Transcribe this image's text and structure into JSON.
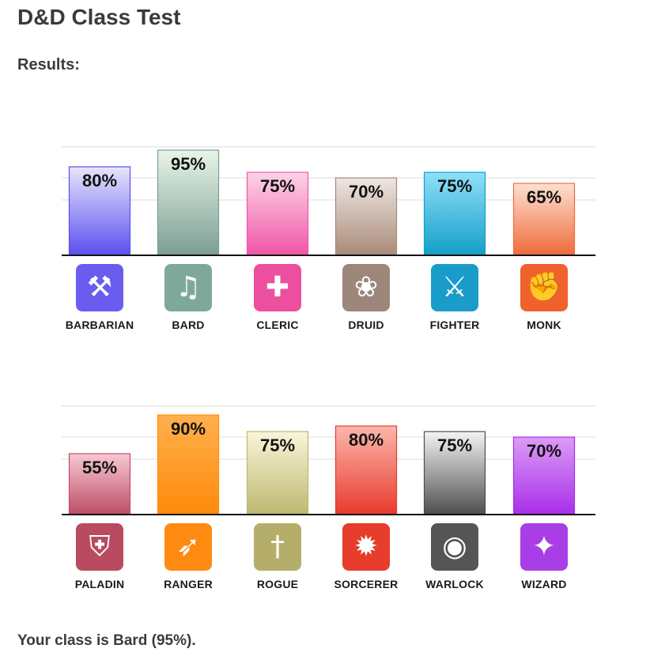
{
  "header": {
    "title": "D&D Class Test",
    "subtitle": "Results:"
  },
  "footer": {
    "text": "Your class is Bard (95%)."
  },
  "chart_data": [
    {
      "type": "bar",
      "categories": [
        "BARBARIAN",
        "BARD",
        "CLERIC",
        "DRUID",
        "FIGHTER",
        "MONK"
      ],
      "values": [
        80,
        95,
        75,
        70,
        75,
        65
      ],
      "value_labels": [
        "80%",
        "95%",
        "75%",
        "70%",
        "75%",
        "65%"
      ],
      "icons": [
        "axe-icon",
        "lyre-icon",
        "holy-symbol-icon",
        "paw-icon",
        "crossed-swords-icon",
        "fist-icon"
      ],
      "colors": [
        {
          "top": "#e8e6fb",
          "bottom": "#5a4ff0",
          "tile": "#6b5cf0"
        },
        {
          "top": "#e8f5e8",
          "bottom": "#7b9e93",
          "tile": "#7fa89c"
        },
        {
          "top": "#fbd6e6",
          "bottom": "#f254a8",
          "tile": "#ec4f9f"
        },
        {
          "top": "#eee6e2",
          "bottom": "#a88a78",
          "tile": "#9c877a"
        },
        {
          "top": "#8fe0f8",
          "bottom": "#139fc8",
          "tile": "#1a9ccb"
        },
        {
          "top": "#fde0d2",
          "bottom": "#ee6b3a",
          "tile": "#f0612e"
        }
      ],
      "ylim": [
        0,
        100
      ],
      "grid": true
    },
    {
      "type": "bar",
      "categories": [
        "PALADIN",
        "RANGER",
        "ROGUE",
        "SORCERER",
        "WARLOCK",
        "WIZARD"
      ],
      "values": [
        55,
        90,
        75,
        80,
        75,
        70
      ],
      "value_labels": [
        "55%",
        "90%",
        "75%",
        "80%",
        "75%",
        "70%"
      ],
      "icons": [
        "helmet-icon",
        "bow-icon",
        "dagger-key-icon",
        "flame-icon",
        "eye-icon",
        "spellbook-icon"
      ],
      "colors": [
        {
          "top": "#f8c8d2",
          "bottom": "#bd4e67",
          "tile": "#b84b60"
        },
        {
          "top": "#ffb04d",
          "bottom": "#ff8a0a",
          "tile": "#ff8a12"
        },
        {
          "top": "#faf5d8",
          "bottom": "#bdb870",
          "tile": "#b5ae6a"
        },
        {
          "top": "#fcb6ad",
          "bottom": "#e83a2c",
          "tile": "#e63d2c"
        },
        {
          "top": "#f4f4f4",
          "bottom": "#4e4e4e",
          "tile": "#555555"
        },
        {
          "top": "#dc9cf6",
          "bottom": "#a92ee8",
          "tile": "#a93ee6"
        }
      ],
      "ylim": [
        0,
        100
      ],
      "grid": true
    }
  ]
}
